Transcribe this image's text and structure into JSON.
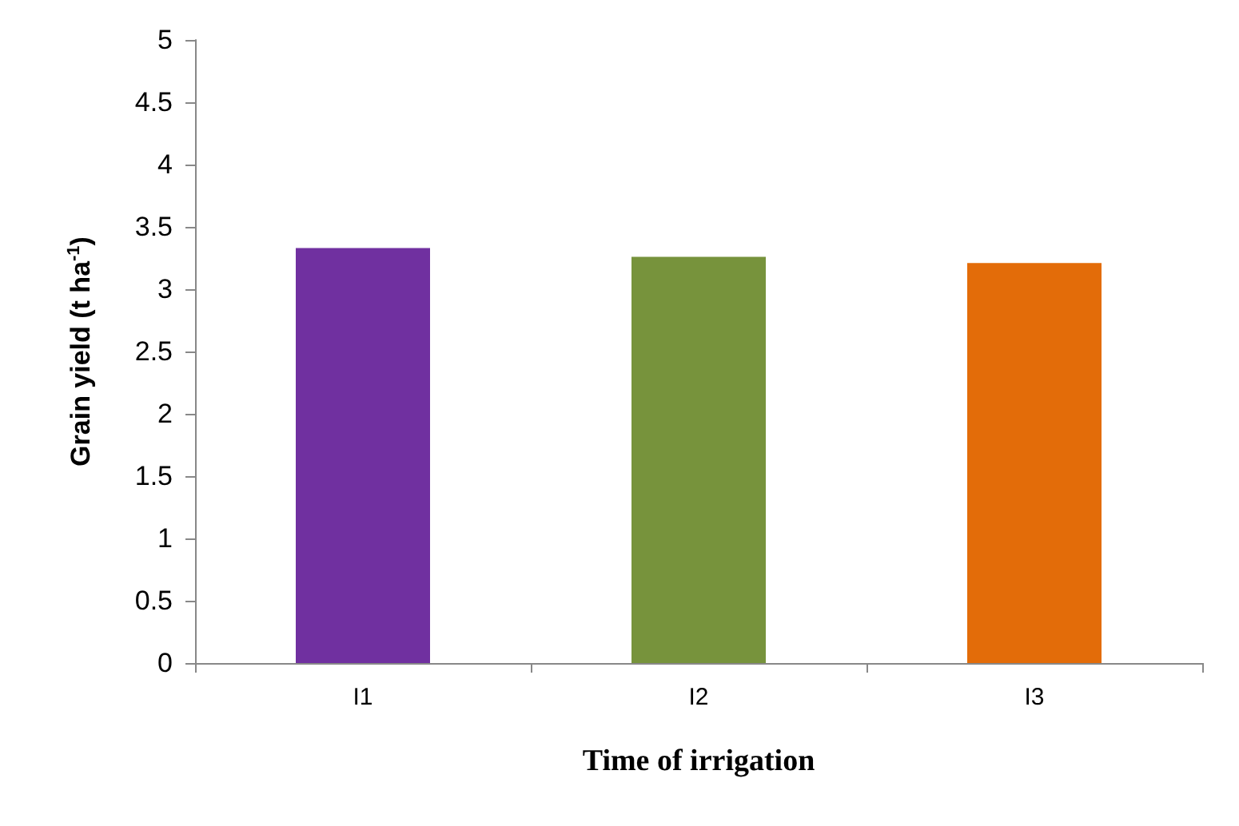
{
  "chart_data": {
    "type": "bar",
    "xlabel": "Time of irrigation",
    "ylabel": "Grain yield (t ha$^{-1}$)",
    "categories": [
      "I1",
      "I2",
      "I3"
    ],
    "values": [
      3.33,
      3.26,
      3.21
    ],
    "colors": [
      "#7030a0",
      "#77933c",
      "#e36c09"
    ],
    "ylim": [
      0,
      5
    ],
    "yticks": [
      0,
      0.5,
      1,
      1.5,
      2,
      2.5,
      3,
      3.5,
      4,
      4.5,
      5
    ],
    "grid": false
  }
}
